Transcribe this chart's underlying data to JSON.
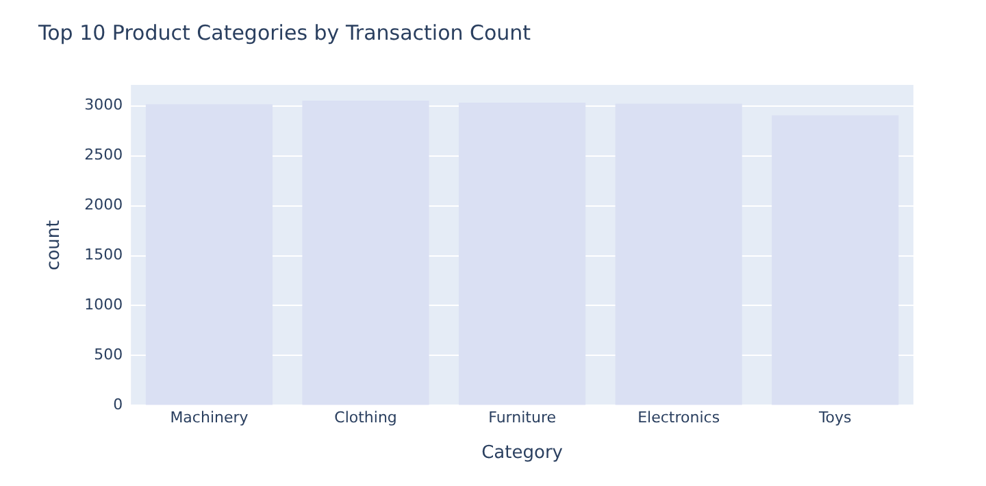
{
  "chart_data": {
    "type": "bar",
    "title": "Top 10 Product Categories by Transaction Count",
    "xlabel": "Category",
    "ylabel": "count",
    "categories": [
      "Machinery",
      "Clothing",
      "Furniture",
      "Electronics",
      "Toys"
    ],
    "values": [
      3016,
      3053,
      3032,
      3021,
      2905
    ],
    "color": "#dae0f3",
    "ylim": [
      0,
      3210
    ],
    "yticks": [
      0,
      500,
      1000,
      1500,
      2000,
      2500,
      3000
    ],
    "grid": "y"
  }
}
